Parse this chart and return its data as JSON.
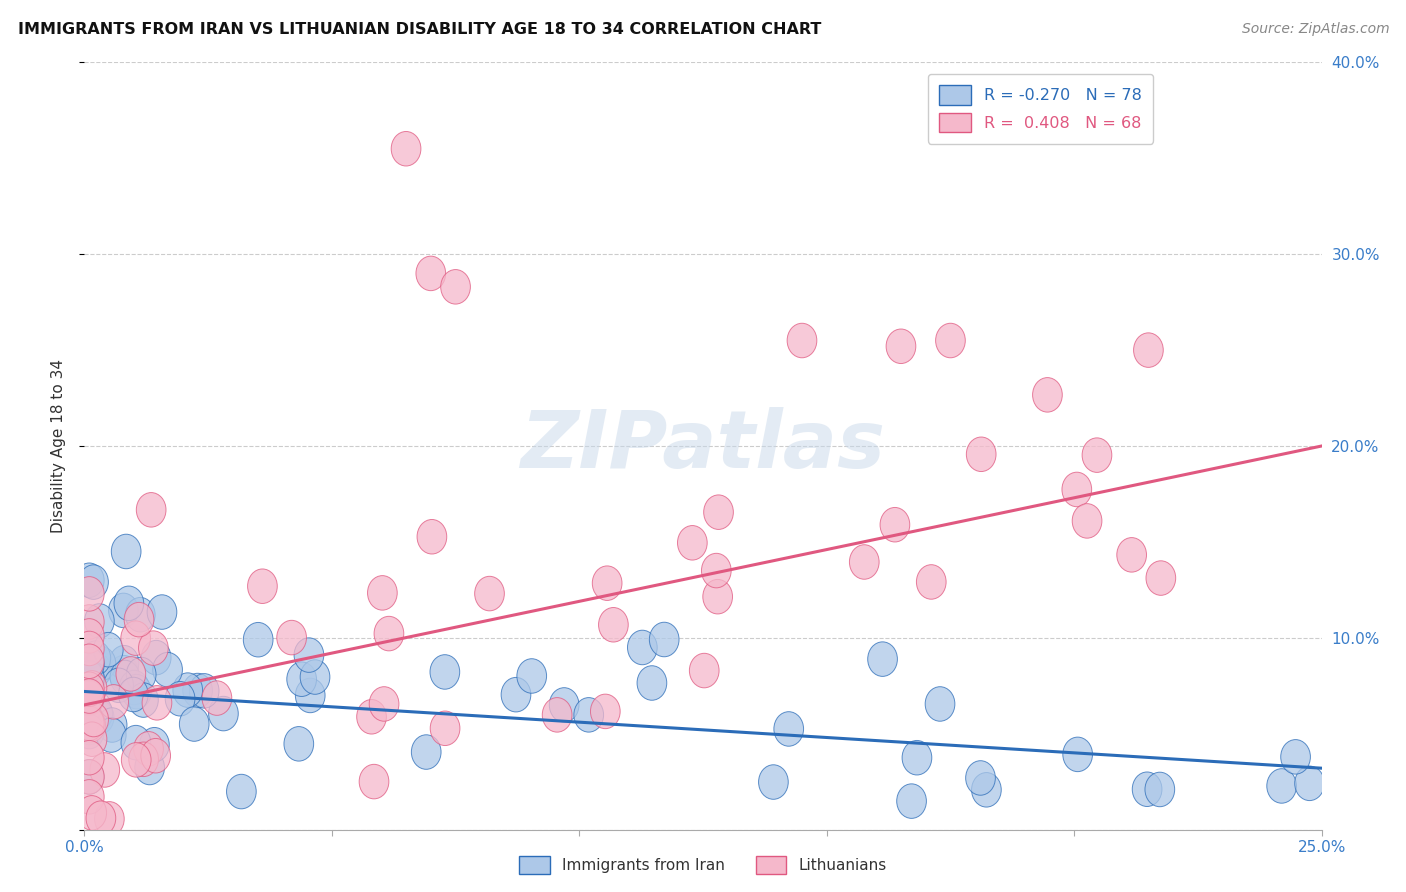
{
  "title": "IMMIGRANTS FROM IRAN VS LITHUANIAN DISABILITY AGE 18 TO 34 CORRELATION CHART",
  "source": "Source: ZipAtlas.com",
  "ylabel": "Disability Age 18 to 34",
  "xmin": 0.0,
  "xmax": 0.25,
  "ymin": 0.0,
  "ymax": 0.4,
  "color_iran": "#adc8e8",
  "color_lith": "#f5b8cb",
  "line_color_iran": "#2b6cb8",
  "line_color_lith": "#e05880",
  "watermark": "ZIPatlas",
  "legend_R1": "R = -0.270",
  "legend_N1": "N = 78",
  "legend_R2": "R =  0.408",
  "legend_N2": "N = 68",
  "iran_trend_x0": 0.0,
  "iran_trend_x1": 0.25,
  "iran_trend_y0": 0.072,
  "iran_trend_y1": 0.032,
  "lith_trend_x0": 0.0,
  "lith_trend_x1": 0.25,
  "lith_trend_y0": 0.065,
  "lith_trend_y1": 0.2
}
